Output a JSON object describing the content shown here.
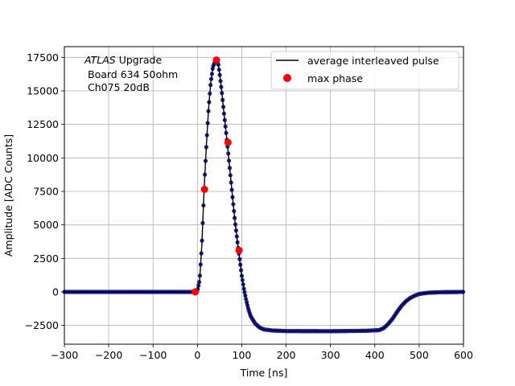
{
  "chart_data": {
    "type": "scatter",
    "xlabel": "Time [ns]",
    "ylabel": "Amplitude [ADC Counts]",
    "xlim": [
      -300,
      600
    ],
    "ylim": [
      -3900,
      18300
    ],
    "xticks": [
      -300,
      -200,
      -100,
      0,
      100,
      200,
      300,
      400,
      500,
      600
    ],
    "yticks": [
      -2500,
      0,
      2500,
      5000,
      7500,
      10000,
      12500,
      15000,
      17500
    ],
    "grid": true,
    "legend_position": "top-right",
    "annotation": {
      "line1_italic": "ATLAS",
      "line1_rest": " Upgrade",
      "line2": "Board 634 50ohm",
      "line3": "Ch075 20dB"
    },
    "series": [
      {
        "name": "average interleaved pulse",
        "style": "line with dense blue markers",
        "line_color": "#000000",
        "marker_color": "#1f1fa8",
        "points": [
          [
            -300,
            0
          ],
          [
            -100,
            0
          ],
          [
            -10,
            0
          ],
          [
            -5,
            0
          ],
          [
            0,
            80
          ],
          [
            5,
            900
          ],
          [
            10,
            3500
          ],
          [
            15,
            7600
          ],
          [
            20,
            10800
          ],
          [
            25,
            13600
          ],
          [
            30,
            15600
          ],
          [
            35,
            16800
          ],
          [
            40,
            17200
          ],
          [
            43,
            17300
          ],
          [
            47,
            17000
          ],
          [
            50,
            16300
          ],
          [
            55,
            14900
          ],
          [
            60,
            13300
          ],
          [
            65,
            11800
          ],
          [
            70,
            10200
          ],
          [
            75,
            8500
          ],
          [
            80,
            6800
          ],
          [
            85,
            5200
          ],
          [
            90,
            3800
          ],
          [
            95,
            2500
          ],
          [
            100,
            1200
          ],
          [
            105,
            200
          ],
          [
            110,
            -600
          ],
          [
            115,
            -1300
          ],
          [
            120,
            -1800
          ],
          [
            130,
            -2350
          ],
          [
            140,
            -2650
          ],
          [
            150,
            -2800
          ],
          [
            170,
            -2880
          ],
          [
            200,
            -2920
          ],
          [
            300,
            -2930
          ],
          [
            380,
            -2900
          ],
          [
            410,
            -2850
          ],
          [
            420,
            -2700
          ],
          [
            430,
            -2400
          ],
          [
            440,
            -2000
          ],
          [
            450,
            -1500
          ],
          [
            460,
            -1050
          ],
          [
            470,
            -700
          ],
          [
            480,
            -450
          ],
          [
            490,
            -280
          ],
          [
            500,
            -150
          ],
          [
            520,
            -60
          ],
          [
            550,
            -20
          ],
          [
            600,
            0
          ]
        ]
      },
      {
        "name": "max phase",
        "style": "points",
        "marker_color": "#ff0000",
        "points": [
          [
            -5,
            0
          ],
          [
            16,
            7650
          ],
          [
            43,
            17300
          ],
          [
            69,
            11150
          ],
          [
            94,
            3100
          ]
        ]
      }
    ]
  }
}
